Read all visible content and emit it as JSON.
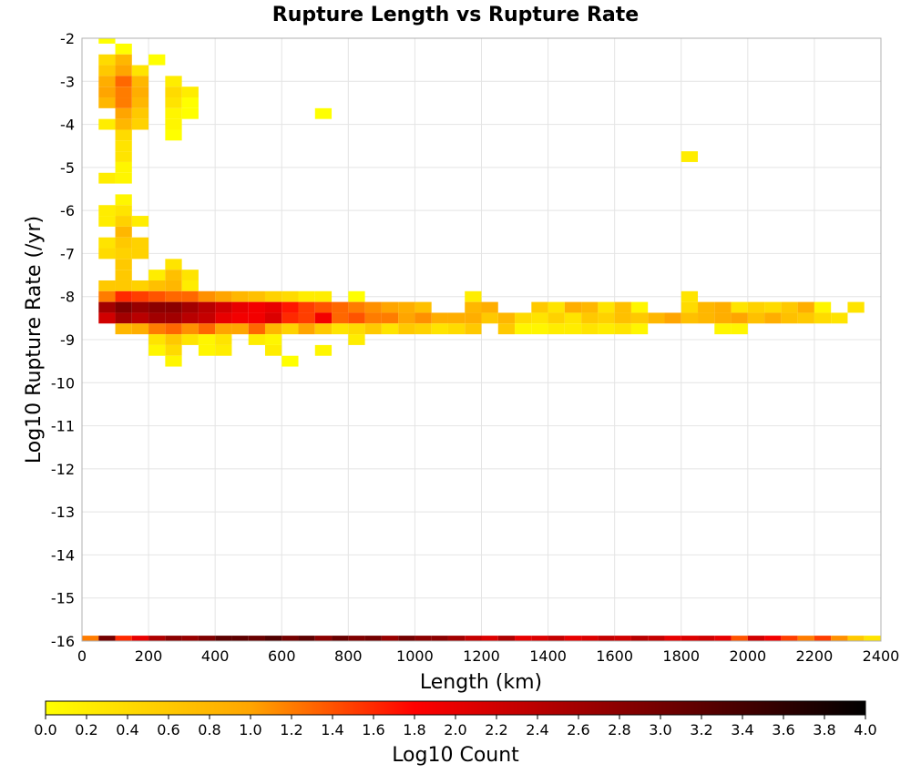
{
  "chart_data": {
    "type": "heatmap",
    "title": "Rupture Length vs Rupture Rate",
    "xlabel": "Length (km)",
    "ylabel": "Log10 Rupture Rate (/yr)",
    "xlim": [
      0,
      2400
    ],
    "ylim": [
      -16,
      -2
    ],
    "x_ticks": [
      "0",
      "200",
      "400",
      "600",
      "800",
      "1000",
      "1200",
      "1400",
      "1600",
      "1800",
      "2000",
      "2200",
      "2400"
    ],
    "y_ticks": [
      "-2",
      "-3",
      "-4",
      "-5",
      "-6",
      "-7",
      "-8",
      "-9",
      "-10",
      "-11",
      "-12",
      "-13",
      "-14",
      "-15",
      "-16"
    ],
    "grid": true,
    "bin_width_km": 50,
    "bin_height_log10": 0.25,
    "colorbar": {
      "label": "Log10 Count",
      "min": 0.0,
      "max": 4.0,
      "ticks": [
        "0.0",
        "0.2",
        "0.4",
        "0.6",
        "0.8",
        "1.0",
        "1.2",
        "1.4",
        "1.6",
        "1.8",
        "2.0",
        "2.2",
        "2.4",
        "2.6",
        "2.8",
        "3.0",
        "3.2",
        "3.4",
        "3.6",
        "3.8",
        "4.0"
      ],
      "colors": [
        "#ffff00",
        "#ffa500",
        "#ff0000",
        "#8b0000",
        "#000000"
      ]
    },
    "cells": [
      [
        75,
        -2.0,
        0.0
      ],
      [
        125,
        -2.25,
        0.0
      ],
      [
        75,
        -2.5,
        0.4
      ],
      [
        125,
        -2.5,
        0.8
      ],
      [
        225,
        -2.5,
        0.0
      ],
      [
        75,
        -2.75,
        0.6
      ],
      [
        125,
        -2.75,
        1.0
      ],
      [
        175,
        -2.75,
        0.3
      ],
      [
        75,
        -3.0,
        0.9
      ],
      [
        125,
        -3.0,
        1.3
      ],
      [
        175,
        -3.0,
        0.8
      ],
      [
        275,
        -3.0,
        0.2
      ],
      [
        75,
        -3.25,
        1.0
      ],
      [
        125,
        -3.25,
        1.2
      ],
      [
        175,
        -3.25,
        0.9
      ],
      [
        275,
        -3.25,
        0.4
      ],
      [
        325,
        -3.25,
        0.2
      ],
      [
        75,
        -3.5,
        0.8
      ],
      [
        125,
        -3.5,
        1.2
      ],
      [
        175,
        -3.5,
        0.8
      ],
      [
        275,
        -3.5,
        0.3
      ],
      [
        325,
        -3.5,
        0.0
      ],
      [
        125,
        -3.75,
        1.0
      ],
      [
        175,
        -3.75,
        0.6
      ],
      [
        275,
        -3.75,
        0.1
      ],
      [
        325,
        -3.75,
        0.0
      ],
      [
        725,
        -3.75,
        0.0
      ],
      [
        75,
        -4.0,
        0.2
      ],
      [
        125,
        -4.0,
        0.8
      ],
      [
        175,
        -4.0,
        0.5
      ],
      [
        275,
        -4.0,
        0.1
      ],
      [
        125,
        -4.25,
        0.4
      ],
      [
        275,
        -4.25,
        0.0
      ],
      [
        125,
        -4.5,
        0.3
      ],
      [
        1825,
        -4.75,
        0.2
      ],
      [
        125,
        -4.75,
        0.3
      ],
      [
        125,
        -5.0,
        0.1
      ],
      [
        75,
        -5.25,
        0.2
      ],
      [
        125,
        -5.25,
        0.1
      ],
      [
        125,
        -5.75,
        0.1
      ],
      [
        75,
        -6.0,
        0.2
      ],
      [
        125,
        -6.0,
        0.3
      ],
      [
        75,
        -6.25,
        0.2
      ],
      [
        125,
        -6.25,
        0.5
      ],
      [
        175,
        -6.25,
        0.2
      ],
      [
        125,
        -6.5,
        0.8
      ],
      [
        75,
        -6.75,
        0.3
      ],
      [
        125,
        -6.75,
        0.6
      ],
      [
        175,
        -6.75,
        0.5
      ],
      [
        75,
        -7.0,
        0.4
      ],
      [
        125,
        -7.0,
        0.5
      ],
      [
        175,
        -7.0,
        0.5
      ],
      [
        125,
        -7.25,
        0.6
      ],
      [
        275,
        -7.25,
        0.3
      ],
      [
        125,
        -7.5,
        0.6
      ],
      [
        225,
        -7.5,
        0.2
      ],
      [
        275,
        -7.5,
        0.7
      ],
      [
        325,
        -7.5,
        0.3
      ],
      [
        75,
        -7.75,
        0.6
      ],
      [
        125,
        -7.75,
        0.6
      ],
      [
        175,
        -7.75,
        0.5
      ],
      [
        225,
        -7.75,
        0.7
      ],
      [
        275,
        -7.75,
        0.8
      ],
      [
        325,
        -7.75,
        0.2
      ],
      [
        75,
        -8.0,
        1.2
      ],
      [
        125,
        -8.0,
        1.6
      ],
      [
        175,
        -8.0,
        1.5
      ],
      [
        225,
        -8.0,
        1.4
      ],
      [
        275,
        -8.0,
        1.3
      ],
      [
        325,
        -8.0,
        1.3
      ],
      [
        375,
        -8.0,
        1.1
      ],
      [
        425,
        -8.0,
        1.0
      ],
      [
        475,
        -8.0,
        0.8
      ],
      [
        525,
        -8.0,
        0.7
      ],
      [
        575,
        -8.0,
        0.5
      ],
      [
        625,
        -8.0,
        0.4
      ],
      [
        675,
        -8.0,
        0.2
      ],
      [
        725,
        -8.0,
        0.2
      ],
      [
        825,
        -8.0,
        0.0
      ],
      [
        1175,
        -8.0,
        0.2
      ],
      [
        1825,
        -8.0,
        0.3
      ],
      [
        75,
        -8.25,
        2.6
      ],
      [
        125,
        -8.25,
        2.9
      ],
      [
        175,
        -8.25,
        2.7
      ],
      [
        225,
        -8.25,
        2.8
      ],
      [
        275,
        -8.25,
        2.8
      ],
      [
        325,
        -8.25,
        2.6
      ],
      [
        375,
        -8.25,
        2.4
      ],
      [
        425,
        -8.25,
        2.2
      ],
      [
        475,
        -8.25,
        2.0
      ],
      [
        525,
        -8.25,
        1.9
      ],
      [
        575,
        -8.25,
        2.0
      ],
      [
        625,
        -8.25,
        1.7
      ],
      [
        675,
        -8.25,
        1.5
      ],
      [
        725,
        -8.25,
        1.4
      ],
      [
        775,
        -8.25,
        1.3
      ],
      [
        825,
        -8.25,
        1.2
      ],
      [
        875,
        -8.25,
        1.1
      ],
      [
        925,
        -8.25,
        1.0
      ],
      [
        975,
        -8.25,
        0.9
      ],
      [
        1025,
        -8.25,
        0.7
      ],
      [
        1175,
        -8.25,
        0.8
      ],
      [
        1225,
        -8.25,
        0.9
      ],
      [
        1375,
        -8.25,
        0.6
      ],
      [
        1425,
        -8.25,
        0.3
      ],
      [
        1475,
        -8.25,
        0.9
      ],
      [
        1525,
        -8.25,
        0.8
      ],
      [
        1575,
        -8.25,
        0.3
      ],
      [
        1625,
        -8.25,
        0.7
      ],
      [
        1675,
        -8.25,
        0.1
      ],
      [
        1825,
        -8.25,
        0.4
      ],
      [
        1875,
        -8.25,
        0.8
      ],
      [
        1925,
        -8.25,
        0.9
      ],
      [
        1975,
        -8.25,
        0.3
      ],
      [
        2025,
        -8.25,
        0.5
      ],
      [
        2075,
        -8.25,
        0.4
      ],
      [
        2125,
        -8.25,
        0.6
      ],
      [
        2175,
        -8.25,
        0.9
      ],
      [
        2225,
        -8.25,
        0.1
      ],
      [
        2325,
        -8.25,
        0.3
      ],
      [
        75,
        -8.5,
        2.2
      ],
      [
        125,
        -8.5,
        2.6
      ],
      [
        175,
        -8.5,
        2.4
      ],
      [
        225,
        -8.5,
        2.6
      ],
      [
        275,
        -8.5,
        2.6
      ],
      [
        325,
        -8.5,
        2.4
      ],
      [
        375,
        -8.5,
        2.3
      ],
      [
        425,
        -8.5,
        2.0
      ],
      [
        475,
        -8.5,
        1.9
      ],
      [
        525,
        -8.5,
        1.9
      ],
      [
        575,
        -8.5,
        2.1
      ],
      [
        625,
        -8.5,
        1.6
      ],
      [
        675,
        -8.5,
        1.5
      ],
      [
        725,
        -8.5,
        1.9
      ],
      [
        775,
        -8.5,
        1.3
      ],
      [
        825,
        -8.5,
        1.4
      ],
      [
        875,
        -8.5,
        1.2
      ],
      [
        925,
        -8.5,
        1.2
      ],
      [
        975,
        -8.5,
        1.0
      ],
      [
        1025,
        -8.5,
        1.1
      ],
      [
        1075,
        -8.5,
        0.9
      ],
      [
        1125,
        -8.5,
        0.9
      ],
      [
        1175,
        -8.5,
        0.9
      ],
      [
        1225,
        -8.5,
        0.6
      ],
      [
        1275,
        -8.5,
        0.8
      ],
      [
        1325,
        -8.5,
        0.4
      ],
      [
        1375,
        -8.5,
        0.3
      ],
      [
        1425,
        -8.5,
        0.5
      ],
      [
        1475,
        -8.5,
        0.3
      ],
      [
        1525,
        -8.5,
        0.6
      ],
      [
        1575,
        -8.5,
        0.5
      ],
      [
        1625,
        -8.5,
        0.7
      ],
      [
        1675,
        -8.5,
        0.6
      ],
      [
        1725,
        -8.5,
        0.8
      ],
      [
        1775,
        -8.5,
        1.0
      ],
      [
        1825,
        -8.5,
        0.7
      ],
      [
        1875,
        -8.5,
        0.8
      ],
      [
        1925,
        -8.5,
        0.9
      ],
      [
        1975,
        -8.5,
        1.0
      ],
      [
        2025,
        -8.5,
        0.7
      ],
      [
        2075,
        -8.5,
        0.9
      ],
      [
        2125,
        -8.5,
        0.7
      ],
      [
        2175,
        -8.5,
        0.6
      ],
      [
        2225,
        -8.5,
        0.4
      ],
      [
        2275,
        -8.5,
        0.3
      ],
      [
        125,
        -8.75,
        0.8
      ],
      [
        175,
        -8.75,
        0.9
      ],
      [
        225,
        -8.75,
        1.2
      ],
      [
        275,
        -8.75,
        1.3
      ],
      [
        325,
        -8.75,
        1.1
      ],
      [
        375,
        -8.75,
        1.3
      ],
      [
        425,
        -8.75,
        1.0
      ],
      [
        475,
        -8.75,
        1.0
      ],
      [
        525,
        -8.75,
        1.3
      ],
      [
        575,
        -8.75,
        0.8
      ],
      [
        625,
        -8.75,
        0.5
      ],
      [
        675,
        -8.75,
        1.0
      ],
      [
        725,
        -8.75,
        0.6
      ],
      [
        775,
        -8.75,
        0.3
      ],
      [
        825,
        -8.75,
        0.4
      ],
      [
        875,
        -8.75,
        0.6
      ],
      [
        925,
        -8.75,
        0.3
      ],
      [
        975,
        -8.75,
        0.6
      ],
      [
        1025,
        -8.75,
        0.5
      ],
      [
        1075,
        -8.75,
        0.3
      ],
      [
        1125,
        -8.75,
        0.4
      ],
      [
        1175,
        -8.75,
        0.6
      ],
      [
        1275,
        -8.75,
        0.6
      ],
      [
        1325,
        -8.75,
        0.1
      ],
      [
        1375,
        -8.75,
        0.1
      ],
      [
        1425,
        -8.75,
        0.2
      ],
      [
        1475,
        -8.75,
        0.2
      ],
      [
        1525,
        -8.75,
        0.3
      ],
      [
        1575,
        -8.75,
        0.2
      ],
      [
        1625,
        -8.75,
        0.3
      ],
      [
        1675,
        -8.75,
        0.1
      ],
      [
        1925,
        -8.75,
        0.1
      ],
      [
        1975,
        -8.75,
        0.1
      ],
      [
        225,
        -9.0,
        0.3
      ],
      [
        275,
        -9.0,
        0.6
      ],
      [
        325,
        -9.0,
        0.3
      ],
      [
        375,
        -9.0,
        0.1
      ],
      [
        425,
        -9.0,
        0.3
      ],
      [
        525,
        -9.0,
        0.2
      ],
      [
        575,
        -9.0,
        0.1
      ],
      [
        825,
        -9.0,
        0.2
      ],
      [
        225,
        -9.25,
        0.1
      ],
      [
        275,
        -9.25,
        0.4
      ],
      [
        375,
        -9.25,
        0.1
      ],
      [
        425,
        -9.25,
        0.2
      ],
      [
        575,
        -9.25,
        0.2
      ],
      [
        725,
        -9.25,
        0.1
      ],
      [
        275,
        -9.5,
        0.1
      ],
      [
        625,
        -9.5,
        0.0
      ],
      [
        25,
        -16.0,
        1.2
      ],
      [
        75,
        -16.0,
        3.0
      ],
      [
        125,
        -16.0,
        1.6
      ],
      [
        175,
        -16.0,
        2.0
      ],
      [
        225,
        -16.0,
        2.5
      ],
      [
        275,
        -16.0,
        2.8
      ],
      [
        325,
        -16.0,
        2.7
      ],
      [
        375,
        -16.0,
        2.9
      ],
      [
        425,
        -16.0,
        3.2
      ],
      [
        475,
        -16.0,
        3.2
      ],
      [
        525,
        -16.0,
        3.1
      ],
      [
        575,
        -16.0,
        3.3
      ],
      [
        625,
        -16.0,
        3.0
      ],
      [
        675,
        -16.0,
        3.2
      ],
      [
        725,
        -16.0,
        2.8
      ],
      [
        775,
        -16.0,
        3.1
      ],
      [
        825,
        -16.0,
        2.9
      ],
      [
        875,
        -16.0,
        3.0
      ],
      [
        925,
        -16.0,
        2.7
      ],
      [
        975,
        -16.0,
        3.0
      ],
      [
        1025,
        -16.0,
        2.8
      ],
      [
        1075,
        -16.0,
        2.8
      ],
      [
        1125,
        -16.0,
        2.6
      ],
      [
        1175,
        -16.0,
        2.3
      ],
      [
        1225,
        -16.0,
        2.1
      ],
      [
        1275,
        -16.0,
        2.5
      ],
      [
        1325,
        -16.0,
        2.0
      ],
      [
        1375,
        -16.0,
        2.1
      ],
      [
        1425,
        -16.0,
        2.3
      ],
      [
        1475,
        -16.0,
        2.0
      ],
      [
        1525,
        -16.0,
        2.1
      ],
      [
        1575,
        -16.0,
        2.3
      ],
      [
        1625,
        -16.0,
        2.2
      ],
      [
        1675,
        -16.0,
        2.4
      ],
      [
        1725,
        -16.0,
        2.3
      ],
      [
        1775,
        -16.0,
        2.0
      ],
      [
        1825,
        -16.0,
        2.1
      ],
      [
        1875,
        -16.0,
        2.2
      ],
      [
        1925,
        -16.0,
        2.0
      ],
      [
        1975,
        -16.0,
        1.4
      ],
      [
        2025,
        -16.0,
        2.2
      ],
      [
        2075,
        -16.0,
        1.9
      ],
      [
        2125,
        -16.0,
        1.5
      ],
      [
        2175,
        -16.0,
        1.2
      ],
      [
        2225,
        -16.0,
        1.5
      ],
      [
        2275,
        -16.0,
        1.1
      ],
      [
        2325,
        -16.0,
        0.6
      ],
      [
        2375,
        -16.0,
        0.3
      ]
    ]
  }
}
